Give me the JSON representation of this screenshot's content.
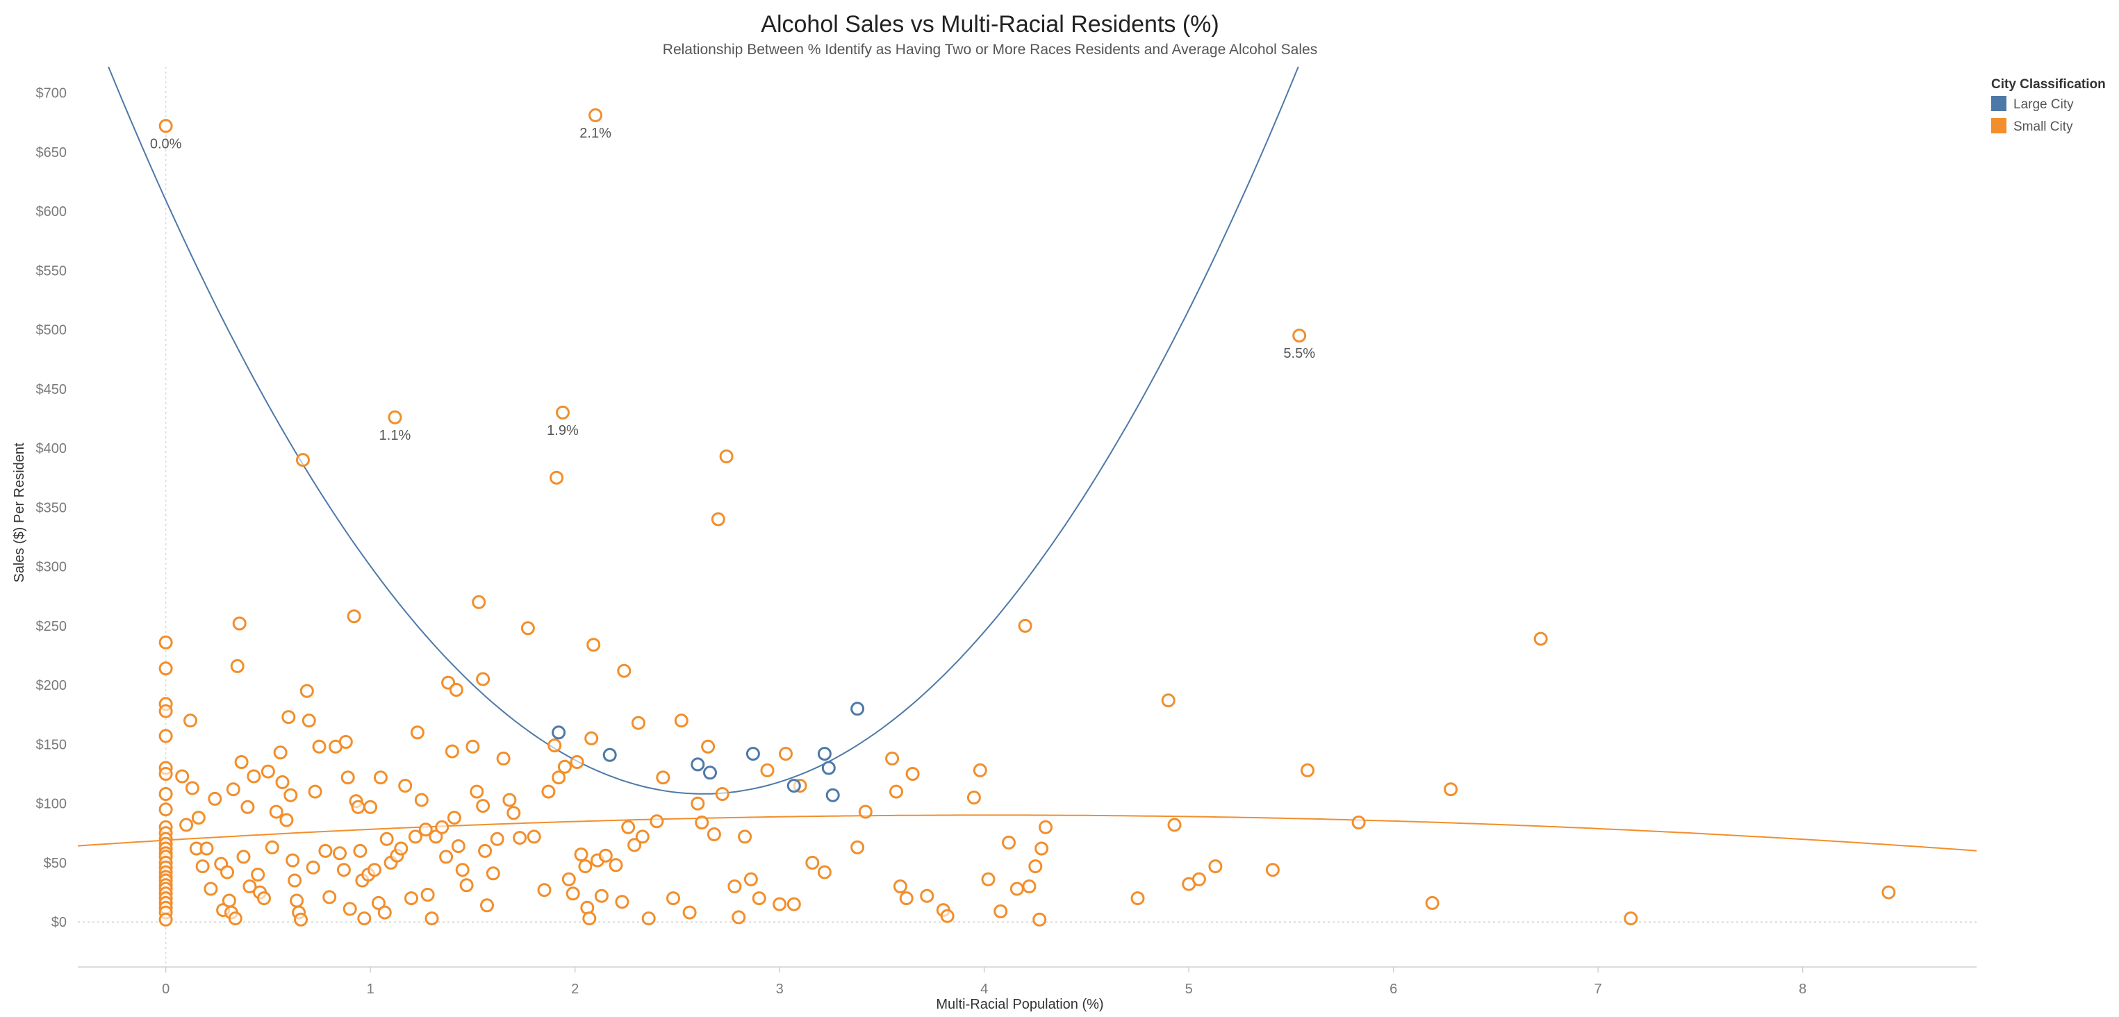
{
  "chart_data": {
    "type": "scatter",
    "title": "Alcohol Sales vs Multi-Racial Residents (%)",
    "subtitle": "Relationship Between % Identify as Having Two or More Races Residents and Average Alcohol Sales",
    "xlabel": "Multi-Racial Population (%)",
    "ylabel": "Sales ($) Per Resident",
    "xlim": [
      -0.43,
      8.85
    ],
    "ylim": [
      -38,
      722
    ],
    "x_ticks": [
      0,
      1,
      2,
      3,
      4,
      5,
      6,
      7,
      8
    ],
    "y_ticks": [
      0,
      50,
      100,
      150,
      200,
      250,
      300,
      350,
      400,
      450,
      500,
      550,
      600,
      650,
      700
    ],
    "y_tick_prefix": "$",
    "grid": false,
    "zero_line": "dotted",
    "legend": {
      "title": "City Classification",
      "position": "top-right",
      "entries": [
        {
          "label": "Large City",
          "color": "#4e79a7"
        },
        {
          "label": "Small City",
          "color": "#f28e2b"
        }
      ]
    },
    "series": [
      {
        "name": "Large City",
        "color": "#4e79a7",
        "points": [
          [
            1.92,
            160
          ],
          [
            2.17,
            141
          ],
          [
            2.6,
            133
          ],
          [
            2.66,
            126
          ],
          [
            2.87,
            142
          ],
          [
            3.07,
            115
          ],
          [
            3.22,
            142
          ],
          [
            3.24,
            130
          ],
          [
            3.26,
            107
          ],
          [
            3.38,
            180
          ]
        ],
        "trend": {
          "type": "quadratic",
          "coefficients": [
            609.3,
            -381.5,
            72.6
          ]
        }
      },
      {
        "name": "Small City",
        "color": "#f28e2b",
        "points": [
          [
            0.0,
            672
          ],
          [
            0.0,
            236
          ],
          [
            0.0,
            214
          ],
          [
            0.0,
            184
          ],
          [
            0.0,
            178
          ],
          [
            0.0,
            157
          ],
          [
            0.0,
            130
          ],
          [
            0.0,
            125
          ],
          [
            0.0,
            108
          ],
          [
            0.0,
            95
          ],
          [
            0.0,
            80
          ],
          [
            0.0,
            75
          ],
          [
            0.0,
            70
          ],
          [
            0.0,
            66
          ],
          [
            0.0,
            62
          ],
          [
            0.0,
            58
          ],
          [
            0.0,
            55
          ],
          [
            0.0,
            50
          ],
          [
            0.0,
            46
          ],
          [
            0.0,
            42
          ],
          [
            0.0,
            38
          ],
          [
            0.0,
            35
          ],
          [
            0.0,
            31
          ],
          [
            0.0,
            28
          ],
          [
            0.0,
            24
          ],
          [
            0.0,
            20
          ],
          [
            0.0,
            16
          ],
          [
            0.0,
            12
          ],
          [
            0.0,
            8
          ],
          [
            0.0,
            2
          ],
          [
            0.08,
            123
          ],
          [
            0.1,
            82
          ],
          [
            0.12,
            170
          ],
          [
            0.13,
            113
          ],
          [
            0.15,
            62
          ],
          [
            0.16,
            88
          ],
          [
            0.18,
            47
          ],
          [
            0.2,
            62
          ],
          [
            0.22,
            28
          ],
          [
            0.24,
            104
          ],
          [
            0.27,
            49
          ],
          [
            0.28,
            10
          ],
          [
            0.3,
            42
          ],
          [
            0.31,
            18
          ],
          [
            0.32,
            8
          ],
          [
            0.33,
            112
          ],
          [
            0.34,
            3
          ],
          [
            0.35,
            216
          ],
          [
            0.36,
            252
          ],
          [
            0.37,
            135
          ],
          [
            0.38,
            55
          ],
          [
            0.4,
            97
          ],
          [
            0.41,
            30
          ],
          [
            0.43,
            123
          ],
          [
            0.45,
            40
          ],
          [
            0.46,
            25
          ],
          [
            0.48,
            20
          ],
          [
            0.5,
            127
          ],
          [
            0.52,
            63
          ],
          [
            0.54,
            93
          ],
          [
            0.56,
            143
          ],
          [
            0.57,
            118
          ],
          [
            0.59,
            86
          ],
          [
            0.6,
            173
          ],
          [
            0.61,
            107
          ],
          [
            0.62,
            52
          ],
          [
            0.63,
            35
          ],
          [
            0.64,
            18
          ],
          [
            0.65,
            8
          ],
          [
            0.66,
            2
          ],
          [
            0.67,
            390
          ],
          [
            0.69,
            195
          ],
          [
            0.7,
            170
          ],
          [
            0.72,
            46
          ],
          [
            0.73,
            110
          ],
          [
            0.75,
            148
          ],
          [
            0.78,
            60
          ],
          [
            0.8,
            21
          ],
          [
            0.83,
            148
          ],
          [
            0.85,
            58
          ],
          [
            0.87,
            44
          ],
          [
            0.88,
            152
          ],
          [
            0.89,
            122
          ],
          [
            0.9,
            11
          ],
          [
            0.92,
            258
          ],
          [
            0.93,
            102
          ],
          [
            0.94,
            97
          ],
          [
            0.95,
            60
          ],
          [
            0.96,
            35
          ],
          [
            0.97,
            3
          ],
          [
            0.99,
            40
          ],
          [
            1.0,
            97
          ],
          [
            1.02,
            44
          ],
          [
            1.04,
            16
          ],
          [
            1.05,
            122
          ],
          [
            1.07,
            8
          ],
          [
            1.08,
            70
          ],
          [
            1.1,
            50
          ],
          [
            1.12,
            426
          ],
          [
            1.13,
            56
          ],
          [
            1.15,
            62
          ],
          [
            1.17,
            115
          ],
          [
            1.2,
            20
          ],
          [
            1.22,
            72
          ],
          [
            1.23,
            160
          ],
          [
            1.25,
            103
          ],
          [
            1.27,
            78
          ],
          [
            1.28,
            23
          ],
          [
            1.3,
            3
          ],
          [
            1.32,
            72
          ],
          [
            1.35,
            80
          ],
          [
            1.37,
            55
          ],
          [
            1.38,
            202
          ],
          [
            1.4,
            144
          ],
          [
            1.41,
            88
          ],
          [
            1.42,
            196
          ],
          [
            1.43,
            64
          ],
          [
            1.45,
            44
          ],
          [
            1.47,
            31
          ],
          [
            1.5,
            148
          ],
          [
            1.52,
            110
          ],
          [
            1.53,
            270
          ],
          [
            1.55,
            205
          ],
          [
            1.55,
            98
          ],
          [
            1.56,
            60
          ],
          [
            1.57,
            14
          ],
          [
            1.6,
            41
          ],
          [
            1.62,
            70
          ],
          [
            1.65,
            138
          ],
          [
            1.68,
            103
          ],
          [
            1.7,
            92
          ],
          [
            1.73,
            71
          ],
          [
            1.77,
            248
          ],
          [
            1.8,
            72
          ],
          [
            1.85,
            27
          ],
          [
            1.87,
            110
          ],
          [
            1.9,
            149
          ],
          [
            1.91,
            375
          ],
          [
            1.92,
            122
          ],
          [
            1.94,
            430
          ],
          [
            1.95,
            131
          ],
          [
            1.97,
            36
          ],
          [
            1.99,
            24
          ],
          [
            2.01,
            135
          ],
          [
            2.03,
            57
          ],
          [
            2.05,
            47
          ],
          [
            2.06,
            12
          ],
          [
            2.07,
            3
          ],
          [
            2.08,
            155
          ],
          [
            2.09,
            234
          ],
          [
            2.1,
            681
          ],
          [
            2.11,
            52
          ],
          [
            2.13,
            22
          ],
          [
            2.15,
            56
          ],
          [
            2.2,
            48
          ],
          [
            2.23,
            17
          ],
          [
            2.24,
            212
          ],
          [
            2.26,
            80
          ],
          [
            2.29,
            65
          ],
          [
            2.31,
            168
          ],
          [
            2.33,
            72
          ],
          [
            2.36,
            3
          ],
          [
            2.4,
            85
          ],
          [
            2.43,
            122
          ],
          [
            2.48,
            20
          ],
          [
            2.52,
            170
          ],
          [
            2.56,
            8
          ],
          [
            2.6,
            100
          ],
          [
            2.62,
            84
          ],
          [
            2.65,
            148
          ],
          [
            2.68,
            74
          ],
          [
            2.7,
            340
          ],
          [
            2.72,
            108
          ],
          [
            2.74,
            393
          ],
          [
            2.78,
            30
          ],
          [
            2.8,
            4
          ],
          [
            2.83,
            72
          ],
          [
            2.86,
            36
          ],
          [
            2.9,
            20
          ],
          [
            2.94,
            128
          ],
          [
            3.0,
            15
          ],
          [
            3.03,
            142
          ],
          [
            3.07,
            15
          ],
          [
            3.1,
            115
          ],
          [
            3.16,
            50
          ],
          [
            3.22,
            42
          ],
          [
            3.38,
            63
          ],
          [
            3.42,
            93
          ],
          [
            3.55,
            138
          ],
          [
            3.57,
            110
          ],
          [
            3.59,
            30
          ],
          [
            3.62,
            20
          ],
          [
            3.65,
            125
          ],
          [
            3.72,
            22
          ],
          [
            3.8,
            10
          ],
          [
            3.82,
            5
          ],
          [
            3.95,
            105
          ],
          [
            3.98,
            128
          ],
          [
            4.02,
            36
          ],
          [
            4.08,
            9
          ],
          [
            4.12,
            67
          ],
          [
            4.16,
            28
          ],
          [
            4.2,
            250
          ],
          [
            4.22,
            30
          ],
          [
            4.25,
            47
          ],
          [
            4.27,
            2
          ],
          [
            4.28,
            62
          ],
          [
            4.3,
            80
          ],
          [
            4.75,
            20
          ],
          [
            4.9,
            187
          ],
          [
            4.93,
            82
          ],
          [
            5.0,
            32
          ],
          [
            5.05,
            36
          ],
          [
            5.13,
            47
          ],
          [
            5.41,
            44
          ],
          [
            5.54,
            495
          ],
          [
            5.58,
            128
          ],
          [
            5.83,
            84
          ],
          [
            6.19,
            16
          ],
          [
            6.28,
            112
          ],
          [
            6.72,
            239
          ],
          [
            7.16,
            3
          ],
          [
            8.42,
            25
          ]
        ],
        "trend": {
          "type": "quadratic",
          "coefficients": [
            69.0,
            10.5,
            -1.3
          ]
        }
      }
    ],
    "annotations": [
      {
        "x": 0.0,
        "y": 672,
        "text": "0.0%"
      },
      {
        "x": 2.1,
        "y": 681,
        "text": "2.1%"
      },
      {
        "x": 5.54,
        "y": 495,
        "text": "5.5%"
      },
      {
        "x": 1.12,
        "y": 426,
        "text": "1.1%"
      },
      {
        "x": 1.94,
        "y": 430,
        "text": "1.9%"
      }
    ]
  }
}
